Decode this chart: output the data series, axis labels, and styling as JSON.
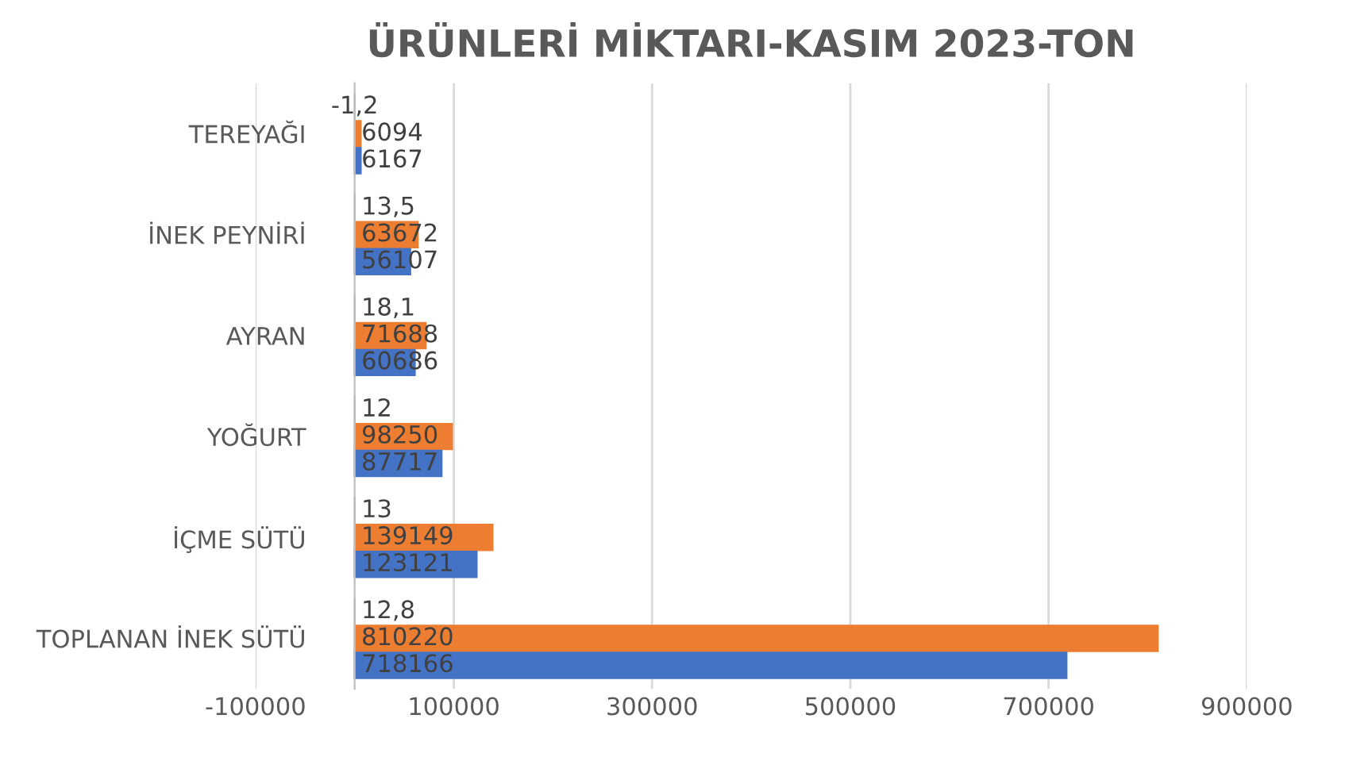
{
  "chart_data": {
    "type": "bar",
    "orientation": "horizontal",
    "title": "ÜRÜNLERİ MİKTARI-KASIM 2023-TON",
    "categories": [
      "TEREYAĞI",
      "İNEK PEYNİRİ",
      "AYRAN",
      "YOĞURT",
      "İÇME SÜTÜ",
      "TOPLANAN İNEK SÜTÜ"
    ],
    "series": [
      {
        "color": "#a5a5a5",
        "values": [
          -1.2,
          13.5,
          18.1,
          12,
          13,
          12.8
        ],
        "value_labels": [
          "-1,2",
          "13,5",
          "18,1",
          "12",
          "13",
          "12,8"
        ]
      },
      {
        "color": "#ed7d31",
        "values": [
          6094,
          63672,
          71688,
          98250,
          139149,
          810220
        ]
      },
      {
        "color": "#4472c4",
        "values": [
          6167,
          56107,
          60686,
          87717,
          123121,
          718166
        ]
      }
    ],
    "xlim": [
      -100000,
      900000
    ],
    "xticks": [
      -100000,
      100000,
      300000,
      500000,
      700000,
      900000
    ],
    "grid": "x",
    "data_labels": true,
    "legend": false
  }
}
